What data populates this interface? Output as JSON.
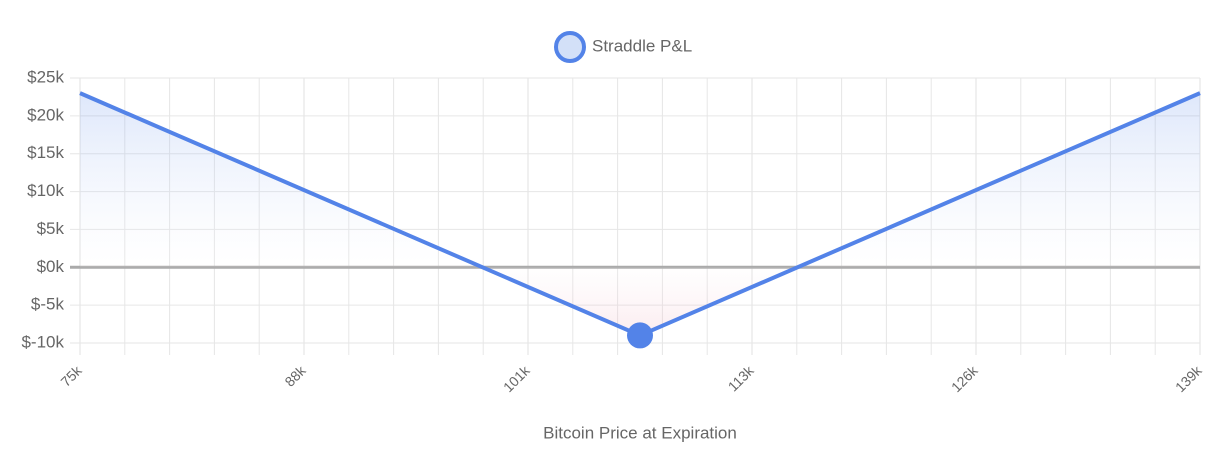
{
  "chart_data": {
    "type": "line",
    "series": [
      {
        "name": "Straddle P&L",
        "color": "#5383e8",
        "values": [
          23000,
          -9000,
          23000
        ]
      }
    ],
    "x": [
      75000,
      107000,
      139000
    ],
    "marker_index": 1,
    "x_label": "Bitcoin Price at Expiration",
    "xlim": [
      75000,
      139000
    ],
    "xticks": [
      {
        "value": 75000,
        "label": "75k"
      },
      {
        "value": 87800,
        "label": "88k"
      },
      {
        "value": 100600,
        "label": "101k"
      },
      {
        "value": 113400,
        "label": "113k"
      },
      {
        "value": 126200,
        "label": "126k"
      },
      {
        "value": 139000,
        "label": "139k"
      }
    ],
    "xminor": [
      77560,
      80120,
      82680,
      85240,
      90360,
      92920,
      95480,
      98040,
      103160,
      105720,
      108280,
      110840,
      115960,
      118520,
      121080,
      123640,
      128760,
      131320,
      133880,
      136440
    ],
    "ylim": [
      -10000,
      25000
    ],
    "yticks": [
      {
        "value": 25000,
        "label": "$25k"
      },
      {
        "value": 20000,
        "label": "$20k"
      },
      {
        "value": 15000,
        "label": "$15k"
      },
      {
        "value": 10000,
        "label": "$10k"
      },
      {
        "value": 5000,
        "label": "$5k"
      },
      {
        "value": 0,
        "label": "$0k"
      },
      {
        "value": -5000,
        "label": "$-5k"
      },
      {
        "value": -10000,
        "label": "$-10k"
      }
    ],
    "grid": true,
    "legend": "top"
  }
}
